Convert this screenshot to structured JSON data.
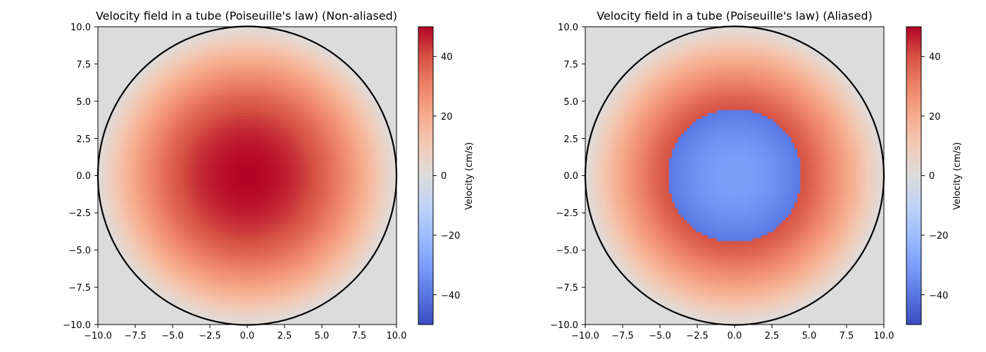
{
  "chart_data": [
    {
      "type": "heatmap",
      "title": "Velocity field in a tube (Poiseuille's law) (Non-aliased)",
      "xlim": [
        -10,
        10
      ],
      "ylim": [
        -10,
        10
      ],
      "xticks": [
        "−10.0",
        "−7.5",
        "−5.0",
        "−2.5",
        "0.0",
        "2.5",
        "5.0",
        "7.5",
        "10.0"
      ],
      "yticks": [
        "10.0",
        "7.5",
        "5.0",
        "2.5",
        "0.0",
        "−2.5",
        "−5.0",
        "−7.5",
        "−10.0"
      ],
      "tube_radius": 10,
      "max_velocity": 50,
      "aliased": false,
      "colormap": "coolwarm",
      "background_color": "#dddcdc",
      "colorbar": {
        "label": "Velocity (cm/s)",
        "range": [
          -50,
          50
        ],
        "ticks": [
          "40",
          "20",
          "0",
          "−20",
          "−40"
        ]
      }
    },
    {
      "type": "heatmap",
      "title": "Velocity field in a tube (Poiseuille's law) (Aliased)",
      "xlim": [
        -10,
        10
      ],
      "ylim": [
        -10,
        10
      ],
      "xticks": [
        "−10.0",
        "−7.5",
        "−5.0",
        "−2.5",
        "0.0",
        "2.5",
        "5.0",
        "7.5",
        "10.0"
      ],
      "yticks": [
        "10.0",
        "7.5",
        "5.0",
        "2.5",
        "0.0",
        "−2.5",
        "−5.0",
        "−7.5",
        "−10.0"
      ],
      "tube_radius": 10,
      "max_velocity": 50,
      "aliased": true,
      "nyquist_limit": 40,
      "colormap": "coolwarm",
      "background_color": "#dddcdc",
      "colorbar": {
        "label": "Velocity (cm/s)",
        "range": [
          -50,
          50
        ],
        "ticks": [
          "40",
          "20",
          "0",
          "−20",
          "−40"
        ]
      }
    }
  ]
}
